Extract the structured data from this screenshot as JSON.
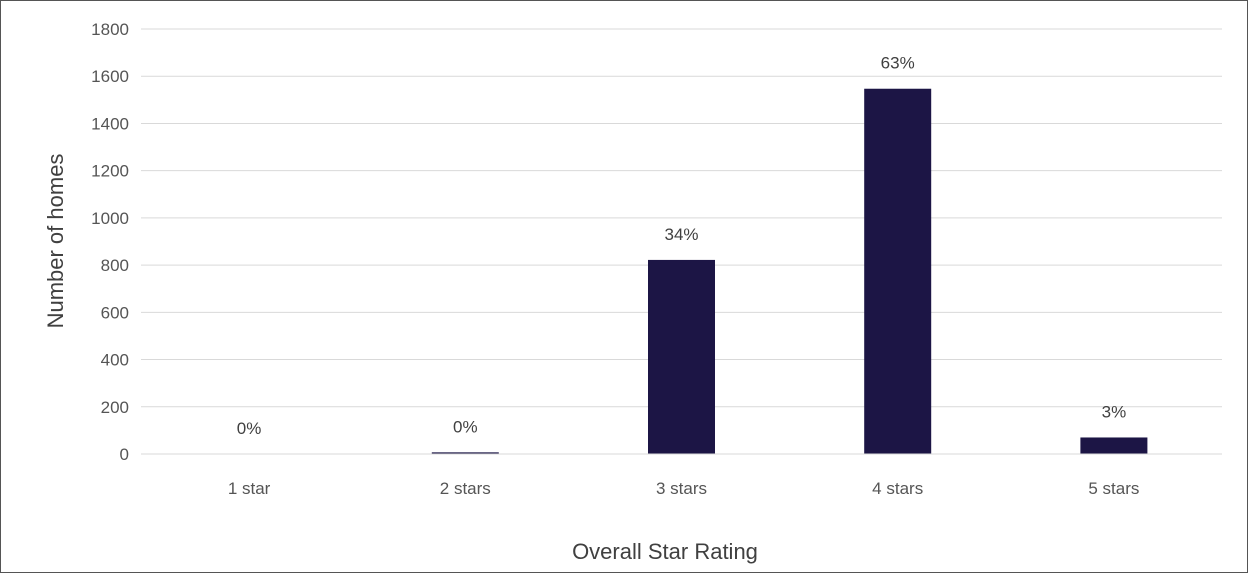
{
  "chart_data": {
    "type": "bar",
    "categories": [
      "1 star",
      "2 stars",
      "3 stars",
      "4 stars",
      "5 stars"
    ],
    "values": [
      0,
      7,
      822,
      1547,
      70
    ],
    "data_labels": [
      "0%",
      "0%",
      "34%",
      "63%",
      "3%"
    ],
    "title": "",
    "xlabel": "Overall Star Rating",
    "ylabel": "Number of homes",
    "ylim": [
      0,
      1800
    ],
    "yticks": [
      0,
      200,
      400,
      600,
      800,
      1000,
      1200,
      1400,
      1600,
      1800
    ],
    "grid": true,
    "bar_color": "#1c1545",
    "grid_color": "#d9d9d9"
  }
}
